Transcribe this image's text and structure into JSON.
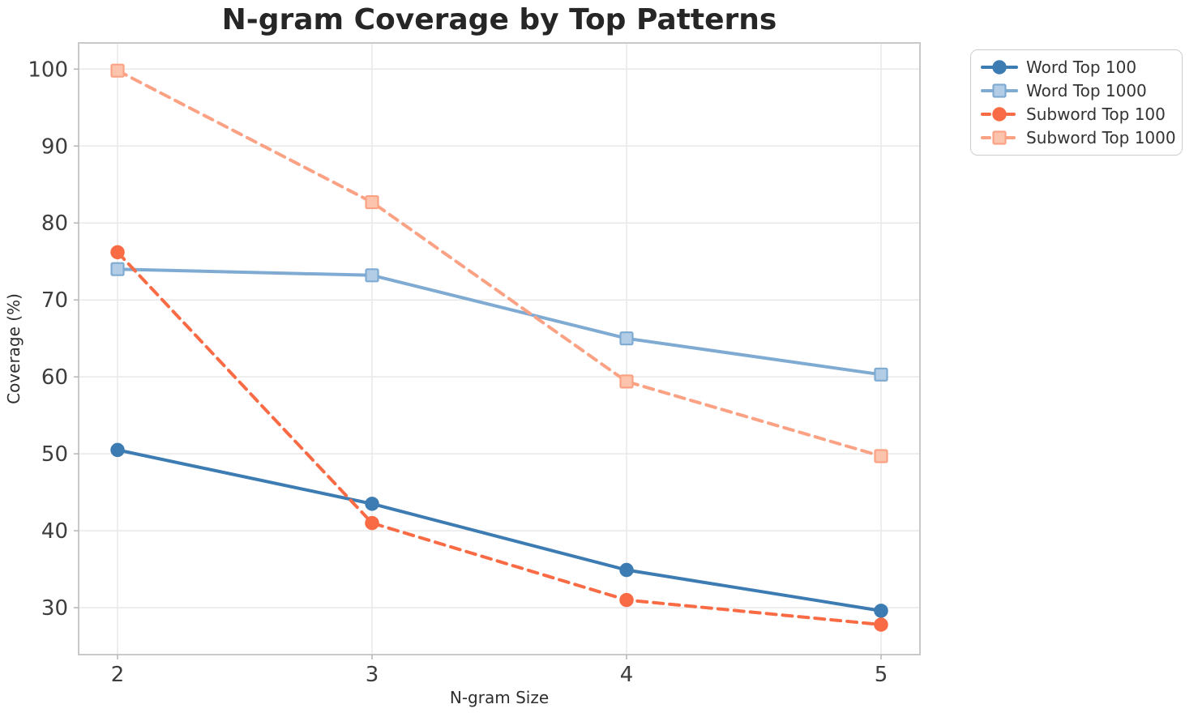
{
  "chart_data": {
    "type": "line",
    "title": "N-gram Coverage by Top Patterns",
    "xlabel": "N-gram Size",
    "ylabel": "Coverage (%)",
    "x": [
      2,
      3,
      4,
      5
    ],
    "xtick_labels": [
      "2",
      "3",
      "4",
      "5"
    ],
    "ytick_values": [
      100,
      90,
      80,
      70,
      60,
      50,
      40,
      30
    ],
    "ytick_labels": [
      "100",
      "90",
      "80",
      "70",
      "60",
      "50",
      "40",
      "30"
    ],
    "xlim": [
      1.847,
      5.153
    ],
    "ylim": [
      23.9,
      103.4
    ],
    "grid": true,
    "legend_position": "outside-upper-right",
    "series": [
      {
        "name": "Word Top 100",
        "values": [
          50.5,
          43.5,
          34.9,
          29.6
        ],
        "color": "#3d7cb2",
        "marker_fill": "#3d7cb2",
        "marker": "circle",
        "line": "solid"
      },
      {
        "name": "Word Top 1000",
        "values": [
          74.0,
          73.2,
          65.0,
          60.3
        ],
        "color": "#7fabd3",
        "marker_fill": "#b4cde6",
        "marker": "square",
        "line": "solid"
      },
      {
        "name": "Subword Top 100",
        "values": [
          76.2,
          41.0,
          31.0,
          27.8
        ],
        "color": "#f96b44",
        "marker_fill": "#f96b44",
        "marker": "circle",
        "line": "dashed"
      },
      {
        "name": "Subword Top 1000",
        "values": [
          99.8,
          82.7,
          59.4,
          49.7
        ],
        "color": "#fba285",
        "marker_fill": "#fcc4ac",
        "marker": "square",
        "line": "dashed"
      }
    ],
    "style": {
      "grid_color": "#e8e8e8",
      "spine_color": "#c9c9c9",
      "tick_mark_color": "#b5b5b5",
      "tick_label_color": "#3d3d3d",
      "axis_label_color": "#2e2e2e",
      "title_color": "#262626"
    }
  }
}
